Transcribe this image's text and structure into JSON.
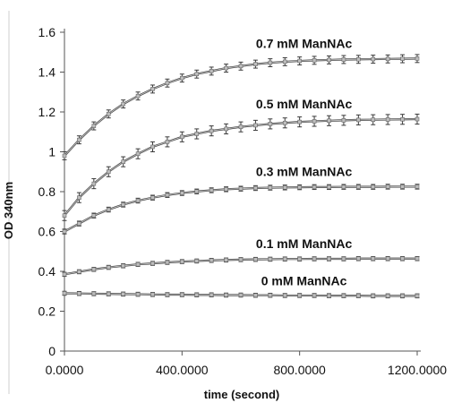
{
  "chart_data": {
    "type": "line",
    "title": "",
    "xlabel": "time (second)",
    "ylabel": "OD 340nm",
    "xlim": [
      0,
      1200
    ],
    "ylim": [
      0,
      1.6
    ],
    "x_ticks": [
      0,
      400,
      800,
      1200
    ],
    "x_tick_labels": [
      "0.0000",
      "400.0000",
      "800.0000",
      "1200.0000"
    ],
    "y_ticks": [
      0,
      0.2,
      0.4,
      0.6,
      0.8,
      1,
      1.2,
      1.4,
      1.6
    ],
    "y_tick_labels": [
      "0",
      "0.2",
      "0.4",
      "0.6",
      "0.8",
      "1",
      "1.2",
      "1.4",
      "1.6"
    ],
    "grid": false,
    "legend": "none",
    "error_bars": true,
    "x": [
      0,
      50,
      100,
      150,
      200,
      250,
      300,
      350,
      400,
      450,
      500,
      550,
      600,
      650,
      700,
      750,
      800,
      850,
      900,
      950,
      1000,
      1050,
      1100,
      1150,
      1200
    ],
    "series": [
      {
        "name": "0.7 mM ManNAc",
        "values": [
          0.98,
          1.06,
          1.13,
          1.19,
          1.24,
          1.28,
          1.315,
          1.345,
          1.37,
          1.39,
          1.405,
          1.42,
          1.43,
          1.44,
          1.447,
          1.452,
          1.456,
          1.459,
          1.461,
          1.463,
          1.464,
          1.465,
          1.466,
          1.467,
          1.468
        ],
        "error": 0.02
      },
      {
        "name": "0.5 mM ManNAc",
        "values": [
          0.68,
          0.77,
          0.84,
          0.9,
          0.95,
          0.99,
          1.025,
          1.05,
          1.075,
          1.09,
          1.105,
          1.115,
          1.125,
          1.133,
          1.14,
          1.145,
          1.15,
          1.153,
          1.156,
          1.158,
          1.16,
          1.161,
          1.162,
          1.163,
          1.164
        ],
        "error": 0.025
      },
      {
        "name": "0.3 mM ManNAc",
        "values": [
          0.6,
          0.64,
          0.68,
          0.71,
          0.735,
          0.755,
          0.77,
          0.783,
          0.793,
          0.801,
          0.807,
          0.812,
          0.815,
          0.818,
          0.82,
          0.821,
          0.822,
          0.823,
          0.823,
          0.824,
          0.824,
          0.824,
          0.825,
          0.825,
          0.825
        ],
        "error": 0.012
      },
      {
        "name": "0.1 mM ManNAc",
        "values": [
          0.385,
          0.398,
          0.41,
          0.42,
          0.428,
          0.435,
          0.44,
          0.445,
          0.449,
          0.452,
          0.455,
          0.457,
          0.459,
          0.46,
          0.461,
          0.462,
          0.462,
          0.463,
          0.463,
          0.463,
          0.464,
          0.464,
          0.464,
          0.464,
          0.464
        ],
        "error": 0.01
      },
      {
        "name": "0  mM ManNAc",
        "values": [
          0.29,
          0.289,
          0.288,
          0.287,
          0.286,
          0.285,
          0.284,
          0.283,
          0.283,
          0.282,
          0.282,
          0.281,
          0.281,
          0.28,
          0.28,
          0.279,
          0.279,
          0.279,
          0.278,
          0.278,
          0.278,
          0.277,
          0.277,
          0.277,
          0.277
        ],
        "error": 0.01
      }
    ],
    "colors": {
      "line": "#3a3a3a",
      "marker": "#bdbdbd",
      "axis": "#555555",
      "text": "#111111"
    }
  }
}
